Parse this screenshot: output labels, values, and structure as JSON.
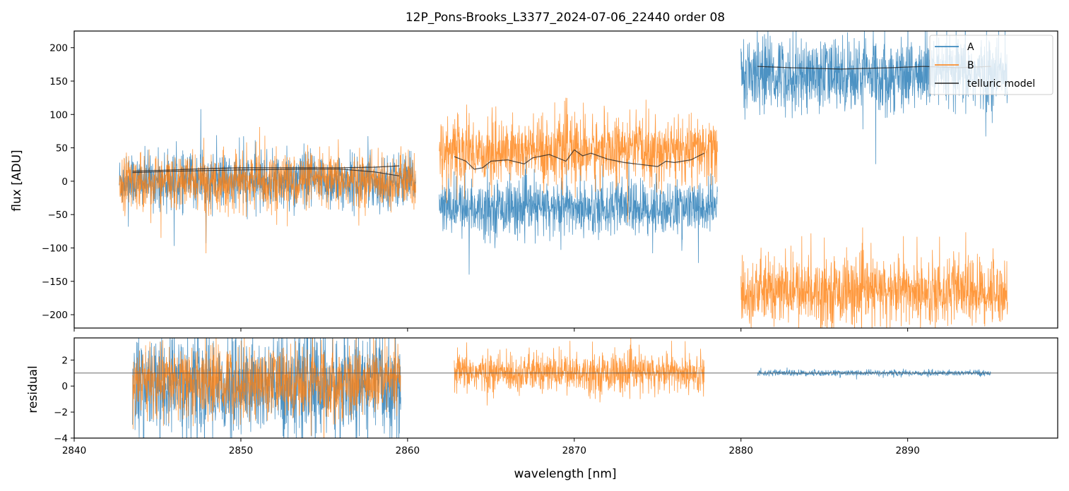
{
  "title": "12P_Pons-Brooks_L3377_2024-07-06_22440  order 08",
  "colors": {
    "A": "#1f77b4",
    "B": "#ff7f0e",
    "model": "#222222",
    "refline": "#555555"
  },
  "chart_data": [
    {
      "panel": "top",
      "type": "line",
      "xlabel": "",
      "ylabel": "flux [ADU]",
      "xlim": [
        2840,
        2899
      ],
      "ylim": [
        -220,
        225
      ],
      "yticks": [
        200,
        150,
        100,
        50,
        0,
        -50,
        -100,
        -150,
        -200
      ],
      "xticks": [
        2840,
        2850,
        2860,
        2870,
        2880,
        2890
      ],
      "tick_labels_shown_x": false,
      "legend": {
        "placement": "top-right",
        "entries": [
          "A",
          "B",
          "telluric model"
        ]
      },
      "series": [
        {
          "name": "A",
          "segments": [
            {
              "x": [
                2842.7,
                2860.5
              ],
              "mean": 0,
              "std": 20,
              "spikes": [
                [
                  2847.6,
                  108
                ],
                [
                  2846.0,
                  -97
                ],
                [
                  2847.9,
                  -93
                ]
              ]
            },
            {
              "x": [
                2861.9,
                2878.6
              ],
              "mean": -40,
              "std": 20,
              "spikes": [
                [
                  2863.7,
                  -140
                ],
                [
                  2869.2,
                  -103
                ],
                [
                  2874.7,
                  -108
                ]
              ]
            },
            {
              "x": [
                2880.0,
                2896.0
              ],
              "mean": 160,
              "std": 28,
              "spikes": []
            }
          ]
        },
        {
          "name": "B",
          "segments": [
            {
              "x": [
                2842.7,
                2860.5
              ],
              "mean": 0,
              "std": 20,
              "spikes": [
                [
                  2847.9,
                  -108
                ],
                [
                  2845.2,
                  -85
                ]
              ]
            },
            {
              "x": [
                2861.9,
                2878.6
              ],
              "mean": 45,
              "std": 25,
              "spikes": [
                [
                  2869.5,
                  125
                ],
                [
                  2874.3,
                  122
                ]
              ]
            },
            {
              "x": [
                2880.0,
                2896.0
              ],
              "mean": -165,
              "std": 25,
              "spikes": [
                [
                  2884.2,
                  -78
                ]
              ]
            }
          ]
        },
        {
          "name": "telluric model",
          "segments": [
            {
              "x": [
                2843.5,
                2844,
                2846,
                2848,
                2850,
                2852,
                2854,
                2856,
                2858,
                2859.5
              ],
              "y": [
                15,
                15.5,
                17,
                19,
                20,
                20,
                20,
                20,
                21,
                23
              ]
            },
            {
              "x": [
                2843.5,
                2846,
                2850,
                2854,
                2856,
                2858,
                2859.5
              ],
              "y": [
                13,
                15,
                17,
                18,
                18,
                14,
                8
              ]
            },
            {
              "x": [
                2862.8,
                2863.5,
                2864.0,
                2864.5,
                2865.0,
                2866.0,
                2867.0,
                2867.5,
                2868.5,
                2869.5,
                2870.0,
                2870.5,
                2871.0,
                2872.0,
                2873.0,
                2874.0,
                2875.0,
                2875.5,
                2876.0,
                2877.0,
                2877.8
              ],
              "y": [
                37,
                30,
                18,
                20,
                30,
                32,
                26,
                35,
                40,
                30,
                47,
                38,
                42,
                33,
                28,
                25,
                22,
                30,
                28,
                32,
                42
              ]
            },
            {
              "x": [
                2881,
                2883,
                2886,
                2889,
                2891,
                2893,
                2895
              ],
              "y": [
                172,
                170,
                168,
                170,
                172,
                170,
                172
              ]
            }
          ]
        }
      ]
    },
    {
      "panel": "bottom",
      "type": "line",
      "xlabel": "wavelength [nm]",
      "ylabel": "residual",
      "xlim": [
        2840,
        2899
      ],
      "ylim": [
        -4,
        3.7
      ],
      "yticks": [
        2,
        0,
        -2,
        -4
      ],
      "xticks": [
        2840,
        2850,
        2860,
        2870,
        2880,
        2890
      ],
      "reference_line_y": 1,
      "series": [
        {
          "name": "A",
          "segments": [
            {
              "x": [
                2843.5,
                2859.6
              ],
              "mean": 0,
              "std": 2.0
            },
            {
              "x": [
                2881.0,
                2895.0
              ],
              "mean": 1.0,
              "std": 0.12
            }
          ]
        },
        {
          "name": "B",
          "segments": [
            {
              "x": [
                2843.5,
                2859.6
              ],
              "mean": 0.3,
              "std": 1.4
            },
            {
              "x": [
                2862.8,
                2877.8
              ],
              "mean": 1.0,
              "std": 0.75
            }
          ]
        }
      ]
    }
  ]
}
